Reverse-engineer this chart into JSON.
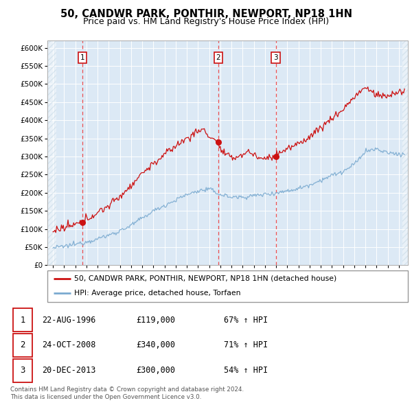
{
  "title": "50, CANDWR PARK, PONTHIR, NEWPORT, NP18 1HN",
  "subtitle": "Price paid vs. HM Land Registry's House Price Index (HPI)",
  "ylim": [
    0,
    620000
  ],
  "yticks": [
    0,
    50000,
    100000,
    150000,
    200000,
    250000,
    300000,
    350000,
    400000,
    450000,
    500000,
    550000,
    600000
  ],
  "ytick_labels": [
    "£0",
    "£50K",
    "£100K",
    "£150K",
    "£200K",
    "£250K",
    "£300K",
    "£350K",
    "£400K",
    "£450K",
    "£500K",
    "£550K",
    "£600K"
  ],
  "xlim_start": 1993.5,
  "xlim_end": 2025.8,
  "xticks": [
    1994,
    1995,
    1996,
    1997,
    1998,
    1999,
    2000,
    2001,
    2002,
    2003,
    2004,
    2005,
    2006,
    2007,
    2008,
    2009,
    2010,
    2011,
    2012,
    2013,
    2014,
    2015,
    2016,
    2017,
    2018,
    2019,
    2020,
    2021,
    2022,
    2023,
    2024,
    2025
  ],
  "hpi_color": "#7aaad0",
  "price_color": "#cc1111",
  "sale_marker_color": "#cc1111",
  "vline_color": "#ee3333",
  "background_color": "#dce9f5",
  "grid_color": "#ffffff",
  "legend_border_color": "#999999",
  "sale_points": [
    {
      "year": 1996.64,
      "price": 119000,
      "label": "1"
    },
    {
      "year": 2008.81,
      "price": 340000,
      "label": "2"
    },
    {
      "year": 2013.97,
      "price": 300000,
      "label": "3"
    }
  ],
  "legend_entries": [
    "50, CANDWR PARK, PONTHIR, NEWPORT, NP18 1HN (detached house)",
    "HPI: Average price, detached house, Torfaen"
  ],
  "table_rows": [
    {
      "num": "1",
      "date": "22-AUG-1996",
      "price": "£119,000",
      "hpi": "67% ↑ HPI"
    },
    {
      "num": "2",
      "date": "24-OCT-2008",
      "price": "£340,000",
      "hpi": "71% ↑ HPI"
    },
    {
      "num": "3",
      "date": "20-DEC-2013",
      "price": "£300,000",
      "hpi": "54% ↑ HPI"
    }
  ],
  "footnote": "Contains HM Land Registry data © Crown copyright and database right 2024.\nThis data is licensed under the Open Government Licence v3.0.",
  "title_fontsize": 10.5,
  "subtitle_fontsize": 9,
  "axis_fontsize": 7.5,
  "table_fontsize": 8.5
}
